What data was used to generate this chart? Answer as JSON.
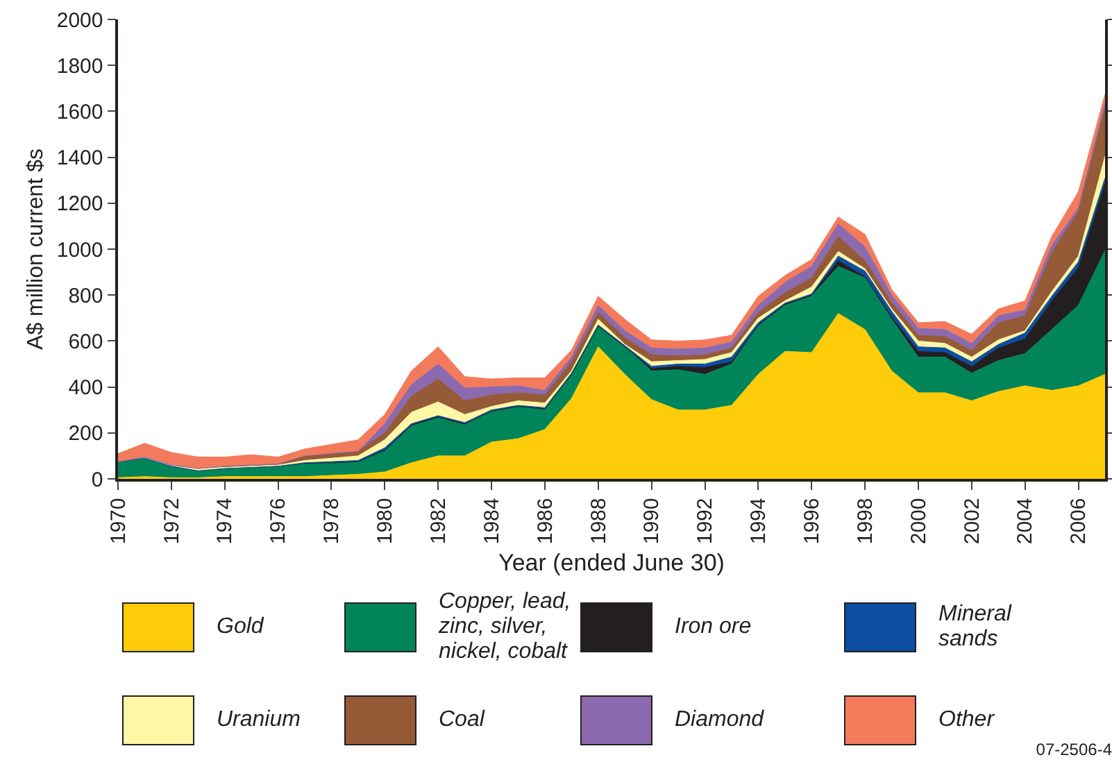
{
  "chart_data": {
    "type": "area",
    "stacked": true,
    "xlabel": "Year (ended June 30)",
    "ylabel": "A$ million current $s",
    "x": [
      1970,
      1971,
      1972,
      1973,
      1974,
      1975,
      1976,
      1977,
      1978,
      1979,
      1980,
      1981,
      1982,
      1983,
      1984,
      1985,
      1986,
      1987,
      1988,
      1989,
      1990,
      1991,
      1992,
      1993,
      1994,
      1995,
      1996,
      1997,
      1998,
      1999,
      2000,
      2001,
      2002,
      2003,
      2004,
      2005,
      2006,
      2007
    ],
    "xlim": [
      1970,
      2007
    ],
    "xticks": [
      1970,
      1972,
      1974,
      1976,
      1978,
      1980,
      1982,
      1984,
      1986,
      1988,
      1990,
      1992,
      1994,
      1996,
      1998,
      2000,
      2002,
      2004,
      2006
    ],
    "ylim": [
      0,
      2000
    ],
    "yticks": [
      0,
      200,
      400,
      600,
      800,
      1000,
      1200,
      1400,
      1600,
      1800,
      2000
    ],
    "grid": false,
    "legend": "bottom",
    "series": [
      {
        "name": "Gold",
        "color": "#fecc09",
        "values": [
          5,
          10,
          5,
          5,
          10,
          10,
          10,
          10,
          15,
          20,
          30,
          70,
          100,
          100,
          160,
          175,
          215,
          350,
          575,
          455,
          345,
          300,
          300,
          320,
          455,
          555,
          550,
          720,
          650,
          470,
          375,
          375,
          340,
          380,
          405,
          385,
          405,
          455
        ]
      },
      {
        "name": "Copper, lead, zinc, silver, nickel, cobalt",
        "color": "#00855a",
        "values": [
          70,
          80,
          50,
          30,
          35,
          40,
          45,
          55,
          55,
          55,
          90,
          160,
          165,
          135,
          135,
          140,
          85,
          105,
          90,
          120,
          125,
          175,
          155,
          180,
          210,
          200,
          245,
          205,
          225,
          225,
          155,
          155,
          120,
          135,
          140,
          265,
          350,
          540
        ]
      },
      {
        "name": "Iron ore",
        "color": "#231f20",
        "values": [
          0,
          0,
          0,
          0,
          0,
          0,
          0,
          3,
          0,
          0,
          5,
          5,
          5,
          5,
          0,
          0,
          5,
          0,
          0,
          0,
          10,
          15,
          30,
          10,
          5,
          5,
          5,
          25,
          5,
          10,
          25,
          20,
          30,
          55,
          65,
          125,
          165,
          290
        ]
      },
      {
        "name": "Mineral sands",
        "color": "#0b4ea2",
        "values": [
          0,
          0,
          0,
          0,
          0,
          0,
          0,
          2,
          5,
          5,
          10,
          5,
          5,
          5,
          5,
          5,
          5,
          5,
          5,
          5,
          10,
          10,
          15,
          20,
          10,
          5,
          5,
          20,
          25,
          25,
          20,
          20,
          20,
          15,
          25,
          20,
          25,
          25
        ]
      },
      {
        "name": "Uranium",
        "color": "#fff6a6",
        "values": [
          0,
          5,
          5,
          10,
          5,
          5,
          5,
          10,
          15,
          20,
          35,
          50,
          60,
          35,
          15,
          20,
          20,
          10,
          25,
          5,
          20,
          15,
          20,
          20,
          20,
          10,
          30,
          20,
          10,
          10,
          25,
          20,
          20,
          20,
          10,
          20,
          25,
          95
        ]
      },
      {
        "name": "Coal",
        "color": "#955a36",
        "values": [
          0,
          0,
          0,
          0,
          5,
          5,
          5,
          20,
          20,
          20,
          30,
          70,
          100,
          60,
          50,
          35,
          35,
          40,
          30,
          30,
          30,
          20,
          20,
          20,
          25,
          35,
          40,
          65,
          35,
          30,
          25,
          30,
          30,
          75,
          65,
          170,
          195,
          210
        ]
      },
      {
        "name": "Diamond",
        "color": "#8b6aaf",
        "values": [
          0,
          0,
          0,
          0,
          0,
          0,
          0,
          0,
          0,
          0,
          40,
          50,
          65,
          55,
          35,
          30,
          20,
          20,
          30,
          30,
          30,
          30,
          30,
          25,
          30,
          45,
          50,
          55,
          60,
          30,
          30,
          30,
          30,
          30,
          25,
          30,
          15,
          25
        ]
      },
      {
        "name": "Other",
        "color": "#f37b5c",
        "values": [
          35,
          60,
          55,
          50,
          40,
          45,
          30,
          30,
          40,
          50,
          40,
          60,
          75,
          50,
          35,
          35,
          55,
          30,
          40,
          50,
          35,
          35,
          35,
          30,
          40,
          30,
          30,
          30,
          55,
          25,
          25,
          35,
          40,
          30,
          40,
          40,
          70,
          35
        ]
      }
    ],
    "annotations": [
      "07-2506-4"
    ]
  }
}
